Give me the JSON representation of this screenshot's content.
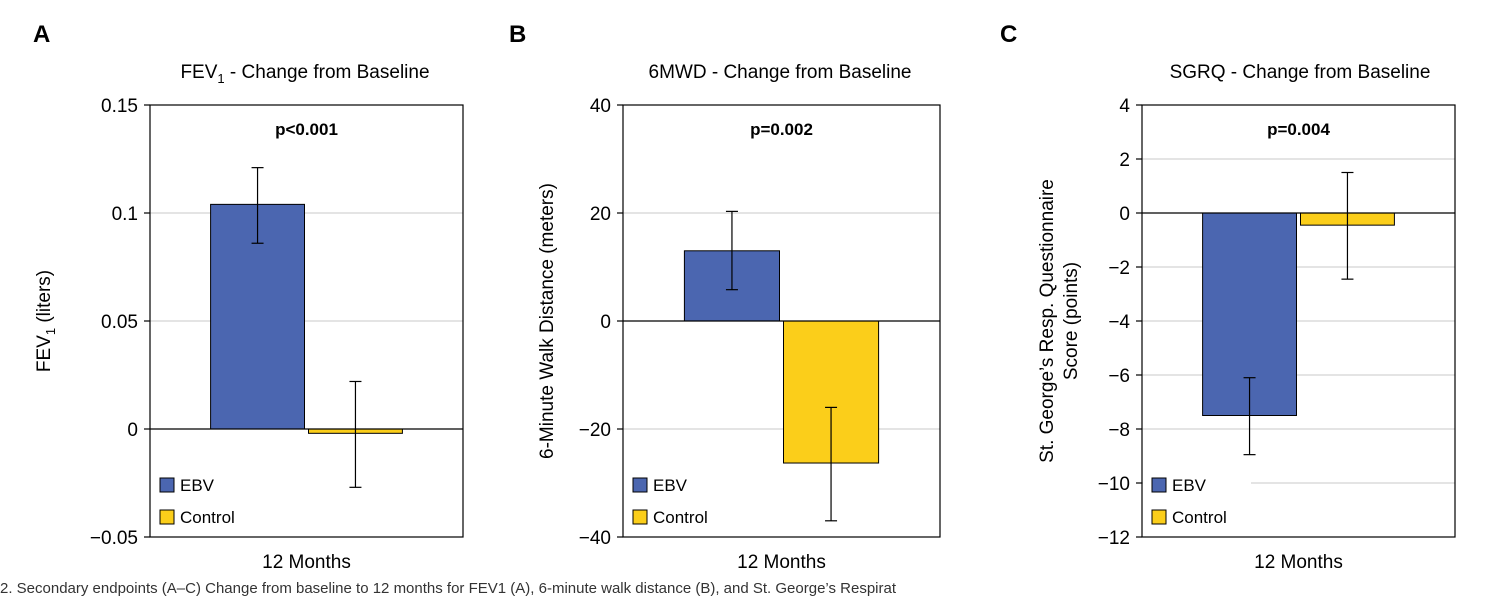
{
  "chart_data": [
    {
      "panel": "A",
      "type": "bar",
      "title": "FEV1 - Change from Baseline",
      "title_main": "FEV",
      "title_sub": "1",
      "title_rest": " - Change from Baseline",
      "ylabel": "FEV1 (liters)",
      "ylabel_main": "FEV",
      "ylabel_sub": "1",
      "ylabel_rest": " (liters)",
      "xlabel": "12 Months",
      "pvalue": "p<0.001",
      "ylim": [
        -0.05,
        0.15
      ],
      "ticks": [
        -0.05,
        0,
        0.05,
        0.1,
        0.15
      ],
      "tick_labels": [
        "−0.05",
        "0",
        "0.05",
        "0.1",
        "0.15"
      ],
      "grid": true,
      "legend_position": "bottom-left",
      "series": [
        {
          "name": "EBV",
          "value": 0.104,
          "err_low": 0.086,
          "err_high": 0.121
        },
        {
          "name": "Control",
          "value": -0.002,
          "err_low": -0.027,
          "err_high": 0.022
        }
      ]
    },
    {
      "panel": "B",
      "type": "bar",
      "title": "6MWD - Change from Baseline",
      "ylabel": "6-Minute Walk Distance (meters)",
      "xlabel": "12 Months",
      "pvalue": "p=0.002",
      "ylim": [
        -40,
        40
      ],
      "ticks": [
        -40,
        -20,
        0,
        20,
        40
      ],
      "tick_labels": [
        "−40",
        "−20",
        "0",
        "20",
        "40"
      ],
      "grid": true,
      "legend_position": "bottom-left",
      "series": [
        {
          "name": "EBV",
          "value": 13,
          "err_low": 5.8,
          "err_high": 20.3
        },
        {
          "name": "Control",
          "value": -26.3,
          "err_low": -37,
          "err_high": -16
        }
      ]
    },
    {
      "panel": "C",
      "type": "bar",
      "title": "SGRQ - Change from Baseline",
      "ylabel_line1": "St. George’s Resp. Questionnaire",
      "ylabel_line2": "Score (points)",
      "xlabel": "12 Months",
      "pvalue": "p=0.004",
      "ylim": [
        -12,
        4
      ],
      "ticks": [
        -12,
        -10,
        -8,
        -6,
        -4,
        -2,
        0,
        2,
        4
      ],
      "tick_labels": [
        "−12",
        "−10",
        "−8",
        "−6",
        "−4",
        "−2",
        "0",
        "2",
        "4"
      ],
      "grid": true,
      "legend_position": "bottom-left",
      "series": [
        {
          "name": "EBV",
          "value": -7.5,
          "err_low": -8.95,
          "err_high": -6.1
        },
        {
          "name": "Control",
          "value": -0.45,
          "err_low": -2.45,
          "err_high": 1.5
        }
      ]
    }
  ],
  "colors": {
    "ebv": "#4b66b0",
    "control": "#fbce1a",
    "grid": "#c9c9c9",
    "axis": "#000000"
  },
  "caption": "2.  Secondary endpoints (A–C) Change from baseline to 12 months for FEV1 (A), 6-minute walk distance (B), and St. George’s Respirat"
}
